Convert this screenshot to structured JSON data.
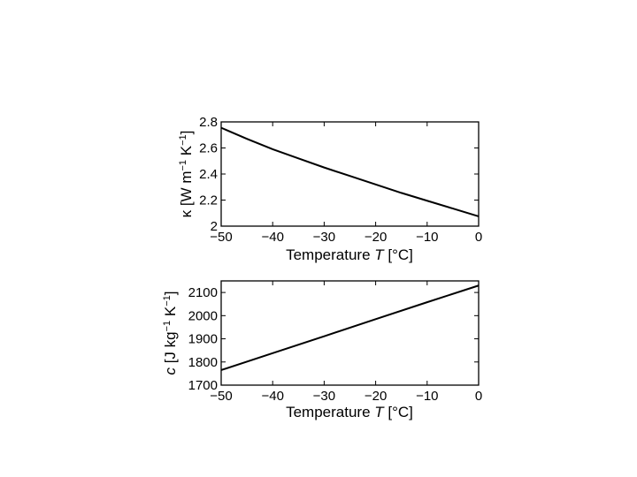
{
  "chart_data": [
    {
      "type": "line",
      "xlabel": "Temperature T [°C]",
      "ylabel": "κ [W m⁻¹ K⁻¹]",
      "xlim": [
        -50,
        0
      ],
      "ylim": [
        2,
        2.8
      ],
      "xticks": [
        -50,
        -40,
        -30,
        -20,
        -10,
        0
      ],
      "yticks": [
        2,
        2.2,
        2.4,
        2.6,
        2.8
      ],
      "xtick_labels": [
        "−50",
        "−40",
        "−30",
        "−20",
        "−10",
        "0"
      ],
      "ytick_labels": [
        "2",
        "2.2",
        "2.4",
        "2.6",
        "2.8"
      ],
      "grid": false,
      "series": [
        {
          "x": [
            -50,
            -45,
            -40,
            -35,
            -30,
            -25,
            -20,
            -15,
            -10,
            -5,
            0
          ],
          "y": [
            2.755,
            2.67,
            2.59,
            2.52,
            2.45,
            2.385,
            2.32,
            2.255,
            2.195,
            2.135,
            2.075
          ]
        }
      ]
    },
    {
      "type": "line",
      "xlabel": "Temperature T [°C]",
      "ylabel": "c [J kg⁻¹ K⁻¹]",
      "xlim": [
        -50,
        0
      ],
      "ylim": [
        1700,
        2150
      ],
      "xticks": [
        -50,
        -40,
        -30,
        -20,
        -10,
        0
      ],
      "yticks": [
        1700,
        1800,
        1900,
        2000,
        2100
      ],
      "xtick_labels": [
        "−50",
        "−40",
        "−30",
        "−20",
        "−10",
        "0"
      ],
      "ytick_labels": [
        "1700",
        "1800",
        "1900",
        "2000",
        "2100"
      ],
      "grid": false,
      "series": [
        {
          "x": [
            -50,
            -40,
            -30,
            -20,
            -10,
            0
          ],
          "y": [
            1765,
            1838,
            1911,
            1985,
            2058,
            2130
          ]
        }
      ]
    }
  ]
}
